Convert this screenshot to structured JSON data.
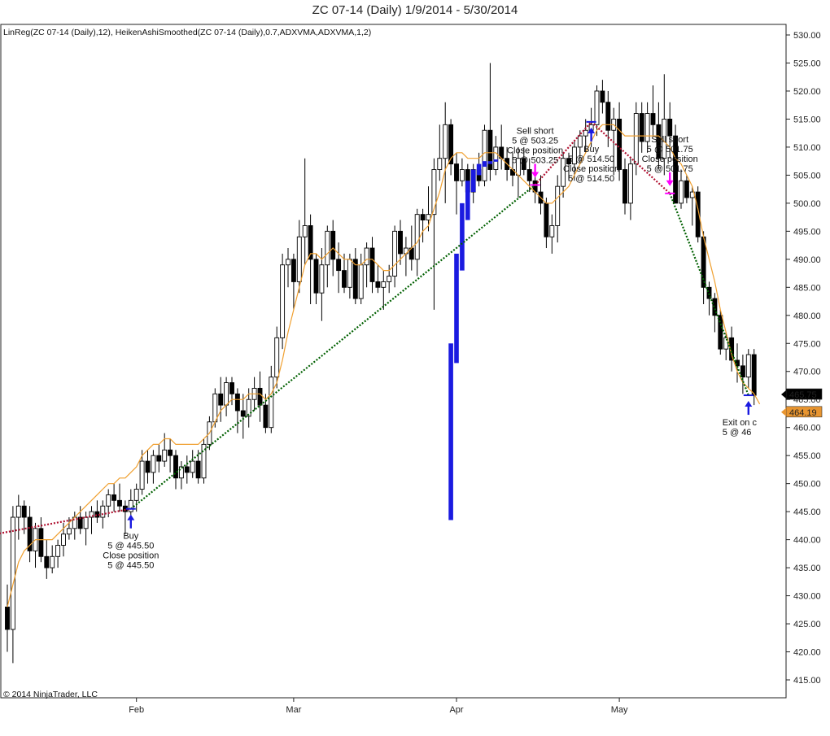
{
  "chart_data": {
    "type": "candlestick",
    "title": "ZC 07-14 (Daily)  1/9/2014 - 5/30/2014",
    "indicator_label": "LinReg(ZC 07-14 (Daily),12), HeikenAshiSmoothed(ZC 07-14 (Daily),0.7,ADXVMA,ADXVMA,1,2)",
    "copyright": "© 2014 NinjaTrader, LLC",
    "ylim": [
      411,
      532
    ],
    "y_ticks": [
      "530.00",
      "525.00",
      "520.00",
      "515.00",
      "510.00",
      "505.00",
      "500.00",
      "495.00",
      "490.00",
      "485.00",
      "480.00",
      "475.00",
      "470.00",
      "465.00",
      "460.00",
      "455.00",
      "450.00",
      "445.00",
      "440.00",
      "435.00",
      "430.00",
      "425.00",
      "420.00",
      "415.00"
    ],
    "x_ticks": [
      {
        "label": "Feb",
        "bar": 23
      },
      {
        "label": "Mar",
        "bar": 51
      },
      {
        "label": "Apr",
        "bar": 80
      },
      {
        "label": "May",
        "bar": 109
      }
    ],
    "bars": [
      {
        "o": 428,
        "h": 432,
        "l": 420,
        "c": 424
      },
      {
        "o": 424,
        "h": 446,
        "l": 418,
        "c": 444
      },
      {
        "o": 444,
        "h": 448,
        "l": 440,
        "c": 446
      },
      {
        "o": 446,
        "h": 447,
        "l": 441,
        "c": 444
      },
      {
        "o": 444,
        "h": 446,
        "l": 436,
        "c": 438
      },
      {
        "o": 438,
        "h": 443,
        "l": 435,
        "c": 442
      },
      {
        "o": 442,
        "h": 444,
        "l": 436,
        "c": 437
      },
      {
        "o": 437,
        "h": 440,
        "l": 433,
        "c": 435
      },
      {
        "o": 435,
        "h": 439,
        "l": 434,
        "c": 437
      },
      {
        "o": 437,
        "h": 440,
        "l": 435,
        "c": 439
      },
      {
        "o": 439,
        "h": 443,
        "l": 437,
        "c": 441
      },
      {
        "o": 441,
        "h": 444,
        "l": 440,
        "c": 442
      },
      {
        "o": 442,
        "h": 445,
        "l": 440,
        "c": 444
      },
      {
        "o": 444,
        "h": 446,
        "l": 441,
        "c": 442
      },
      {
        "o": 442,
        "h": 445,
        "l": 439,
        "c": 444
      },
      {
        "o": 444,
        "h": 446,
        "l": 441,
        "c": 445
      },
      {
        "o": 445,
        "h": 447,
        "l": 443,
        "c": 444
      },
      {
        "o": 444,
        "h": 447,
        "l": 442,
        "c": 446
      },
      {
        "o": 446,
        "h": 449,
        "l": 444,
        "c": 448
      },
      {
        "o": 448,
        "h": 450,
        "l": 445,
        "c": 447
      },
      {
        "o": 447,
        "h": 450,
        "l": 445,
        "c": 446
      },
      {
        "o": 446,
        "h": 447,
        "l": 441,
        "c": 445
      },
      {
        "o": 445,
        "h": 449,
        "l": 444,
        "c": 447
      },
      {
        "o": 447,
        "h": 450,
        "l": 445,
        "c": 449
      },
      {
        "o": 449,
        "h": 456,
        "l": 448,
        "c": 454
      },
      {
        "o": 454,
        "h": 456,
        "l": 450,
        "c": 452
      },
      {
        "o": 452,
        "h": 456,
        "l": 450,
        "c": 455
      },
      {
        "o": 455,
        "h": 457,
        "l": 452,
        "c": 454
      },
      {
        "o": 454,
        "h": 459,
        "l": 453,
        "c": 456
      },
      {
        "o": 456,
        "h": 458,
        "l": 452,
        "c": 455
      },
      {
        "o": 455,
        "h": 456,
        "l": 449,
        "c": 451
      },
      {
        "o": 451,
        "h": 454,
        "l": 449,
        "c": 453
      },
      {
        "o": 453,
        "h": 455,
        "l": 450,
        "c": 452
      },
      {
        "o": 452,
        "h": 456,
        "l": 451,
        "c": 454
      },
      {
        "o": 454,
        "h": 456,
        "l": 450,
        "c": 451
      },
      {
        "o": 451,
        "h": 458,
        "l": 450,
        "c": 457
      },
      {
        "o": 457,
        "h": 462,
        "l": 456,
        "c": 461
      },
      {
        "o": 461,
        "h": 467,
        "l": 460,
        "c": 466
      },
      {
        "o": 466,
        "h": 469,
        "l": 461,
        "c": 464
      },
      {
        "o": 464,
        "h": 469,
        "l": 462,
        "c": 468
      },
      {
        "o": 468,
        "h": 469,
        "l": 464,
        "c": 466
      },
      {
        "o": 466,
        "h": 467,
        "l": 459,
        "c": 463
      },
      {
        "o": 463,
        "h": 466,
        "l": 458,
        "c": 462
      },
      {
        "o": 462,
        "h": 467,
        "l": 460,
        "c": 465
      },
      {
        "o": 465,
        "h": 469,
        "l": 463,
        "c": 467
      },
      {
        "o": 467,
        "h": 470,
        "l": 461,
        "c": 464
      },
      {
        "o": 464,
        "h": 466,
        "l": 459,
        "c": 460
      },
      {
        "o": 460,
        "h": 471,
        "l": 459,
        "c": 469
      },
      {
        "o": 469,
        "h": 478,
        "l": 467,
        "c": 476
      },
      {
        "o": 476,
        "h": 491,
        "l": 474,
        "c": 489
      },
      {
        "o": 489,
        "h": 492,
        "l": 485,
        "c": 490
      },
      {
        "o": 490,
        "h": 491,
        "l": 481,
        "c": 486
      },
      {
        "o": 486,
        "h": 497,
        "l": 484,
        "c": 494
      },
      {
        "o": 494,
        "h": 508,
        "l": 489,
        "c": 496
      },
      {
        "o": 496,
        "h": 498,
        "l": 482,
        "c": 490
      },
      {
        "o": 490,
        "h": 491,
        "l": 482,
        "c": 484
      },
      {
        "o": 484,
        "h": 492,
        "l": 479,
        "c": 489
      },
      {
        "o": 489,
        "h": 496,
        "l": 485,
        "c": 495
      },
      {
        "o": 495,
        "h": 497,
        "l": 487,
        "c": 490
      },
      {
        "o": 490,
        "h": 493,
        "l": 484,
        "c": 488
      },
      {
        "o": 488,
        "h": 491,
        "l": 484,
        "c": 485
      },
      {
        "o": 485,
        "h": 491,
        "l": 483,
        "c": 490
      },
      {
        "o": 490,
        "h": 492,
        "l": 482,
        "c": 483
      },
      {
        "o": 483,
        "h": 491,
        "l": 482,
        "c": 489
      },
      {
        "o": 489,
        "h": 493,
        "l": 485,
        "c": 492
      },
      {
        "o": 492,
        "h": 494,
        "l": 484,
        "c": 486
      },
      {
        "o": 486,
        "h": 489,
        "l": 484,
        "c": 485
      },
      {
        "o": 485,
        "h": 488,
        "l": 481,
        "c": 486
      },
      {
        "o": 486,
        "h": 489,
        "l": 484,
        "c": 487
      },
      {
        "o": 487,
        "h": 496,
        "l": 485,
        "c": 495
      },
      {
        "o": 495,
        "h": 497,
        "l": 489,
        "c": 491
      },
      {
        "o": 491,
        "h": 494,
        "l": 487,
        "c": 492
      },
      {
        "o": 492,
        "h": 496,
        "l": 488,
        "c": 490
      },
      {
        "o": 490,
        "h": 499,
        "l": 487,
        "c": 498
      },
      {
        "o": 498,
        "h": 499,
        "l": 493,
        "c": 497
      },
      {
        "o": 497,
        "h": 503,
        "l": 495,
        "c": 498
      },
      {
        "o": 498,
        "h": 508,
        "l": 481,
        "c": 506
      },
      {
        "o": 506,
        "h": 514,
        "l": 504,
        "c": 508
      },
      {
        "o": 508,
        "h": 518,
        "l": 500,
        "c": 514
      },
      {
        "o": 514,
        "h": 515,
        "l": 505,
        "c": 507
      },
      {
        "o": 507,
        "h": 509,
        "l": 498,
        "c": 504
      },
      {
        "o": 504,
        "h": 508,
        "l": 503,
        "c": 506
      },
      {
        "o": 506,
        "h": 507,
        "l": 500,
        "c": 502
      },
      {
        "o": 502,
        "h": 507,
        "l": 500,
        "c": 506
      },
      {
        "o": 506,
        "h": 509,
        "l": 503,
        "c": 504
      },
      {
        "o": 504,
        "h": 514,
        "l": 503,
        "c": 513
      },
      {
        "o": 513,
        "h": 525,
        "l": 504,
        "c": 506
      },
      {
        "o": 506,
        "h": 512,
        "l": 505,
        "c": 510
      },
      {
        "o": 510,
        "h": 514,
        "l": 506,
        "c": 508
      },
      {
        "o": 508,
        "h": 510,
        "l": 504,
        "c": 506
      },
      {
        "o": 506,
        "h": 509,
        "l": 503,
        "c": 505
      },
      {
        "o": 505,
        "h": 510,
        "l": 501,
        "c": 508
      },
      {
        "o": 508,
        "h": 510,
        "l": 505,
        "c": 506
      },
      {
        "o": 506,
        "h": 508,
        "l": 502,
        "c": 504
      },
      {
        "o": 504,
        "h": 507,
        "l": 500,
        "c": 502
      },
      {
        "o": 502,
        "h": 505,
        "l": 498,
        "c": 500
      },
      {
        "o": 500,
        "h": 501,
        "l": 492,
        "c": 494
      },
      {
        "o": 494,
        "h": 498,
        "l": 491,
        "c": 496
      },
      {
        "o": 496,
        "h": 505,
        "l": 493,
        "c": 503
      },
      {
        "o": 503,
        "h": 509,
        "l": 501,
        "c": 508
      },
      {
        "o": 508,
        "h": 509,
        "l": 504,
        "c": 507
      },
      {
        "o": 507,
        "h": 511,
        "l": 504,
        "c": 510
      },
      {
        "o": 510,
        "h": 513,
        "l": 507,
        "c": 512
      },
      {
        "o": 512,
        "h": 515,
        "l": 509,
        "c": 513
      },
      {
        "o": 513,
        "h": 517,
        "l": 510,
        "c": 514
      },
      {
        "o": 514,
        "h": 521,
        "l": 512,
        "c": 520
      },
      {
        "o": 520,
        "h": 522,
        "l": 516,
        "c": 518
      },
      {
        "o": 518,
        "h": 520,
        "l": 510,
        "c": 513
      },
      {
        "o": 513,
        "h": 517,
        "l": 505,
        "c": 515
      },
      {
        "o": 515,
        "h": 518,
        "l": 504,
        "c": 506
      },
      {
        "o": 506,
        "h": 508,
        "l": 498,
        "c": 500
      },
      {
        "o": 500,
        "h": 508,
        "l": 497,
        "c": 507
      },
      {
        "o": 507,
        "h": 518,
        "l": 505,
        "c": 516
      },
      {
        "o": 516,
        "h": 518,
        "l": 509,
        "c": 511
      },
      {
        "o": 511,
        "h": 518,
        "l": 509,
        "c": 516
      },
      {
        "o": 516,
        "h": 521,
        "l": 512,
        "c": 514
      },
      {
        "o": 514,
        "h": 518,
        "l": 506,
        "c": 508
      },
      {
        "o": 508,
        "h": 523,
        "l": 505,
        "c": 515
      },
      {
        "o": 515,
        "h": 518,
        "l": 508,
        "c": 512
      },
      {
        "o": 512,
        "h": 514,
        "l": 500,
        "c": 500
      },
      {
        "o": 500,
        "h": 506,
        "l": 499,
        "c": 504
      },
      {
        "o": 504,
        "h": 505,
        "l": 500,
        "c": 501
      },
      {
        "o": 501,
        "h": 503,
        "l": 496,
        "c": 502
      },
      {
        "o": 502,
        "h": 503,
        "l": 493,
        "c": 494
      },
      {
        "o": 494,
        "h": 495,
        "l": 482,
        "c": 485
      },
      {
        "o": 485,
        "h": 486,
        "l": 480,
        "c": 483
      },
      {
        "o": 483,
        "h": 484,
        "l": 477,
        "c": 480
      },
      {
        "o": 480,
        "h": 481,
        "l": 473,
        "c": 474
      },
      {
        "o": 474,
        "h": 477,
        "l": 472,
        "c": 476
      },
      {
        "o": 476,
        "h": 478,
        "l": 470,
        "c": 472
      },
      {
        "o": 472,
        "h": 475,
        "l": 468,
        "c": 471
      },
      {
        "o": 471,
        "h": 473,
        "l": 466,
        "c": 469
      },
      {
        "o": 469,
        "h": 474,
        "l": 467,
        "c": 473
      },
      {
        "o": 473,
        "h": 474,
        "l": 464,
        "c": 465.75
      }
    ],
    "linreg": [
      428,
      432,
      436,
      438,
      439,
      440,
      440,
      440,
      440,
      441,
      442,
      443,
      444,
      445,
      446,
      447,
      448,
      449,
      450,
      450,
      451,
      451,
      452,
      453,
      455,
      456,
      457,
      457,
      458,
      458,
      457,
      457,
      457,
      457,
      457,
      458,
      459,
      461,
      463,
      464,
      465,
      465,
      465,
      466,
      466,
      466,
      465,
      466,
      468,
      472,
      477,
      481,
      485,
      489,
      491,
      491,
      490,
      491,
      492,
      491,
      490,
      490,
      489,
      489,
      490,
      490,
      489,
      488,
      488,
      489,
      490,
      491,
      492,
      493,
      495,
      496,
      499,
      502,
      506,
      508,
      509,
      509,
      508,
      508,
      508,
      509,
      509,
      509,
      508,
      507,
      506,
      505,
      504,
      503,
      502,
      501,
      500,
      500,
      501,
      502,
      503,
      505,
      507,
      509,
      511,
      513,
      514,
      514,
      514,
      513,
      512,
      512,
      512,
      512,
      512,
      512,
      512,
      511,
      510,
      508,
      507,
      505,
      503,
      499,
      494,
      490,
      486,
      481,
      477,
      473,
      470,
      468,
      467,
      466,
      464.19
    ],
    "ha_blocks": [
      {
        "bar": 79,
        "top": 475,
        "bottom": 443.5
      },
      {
        "bar": 80,
        "top": 491,
        "bottom": 471.5
      },
      {
        "bar": 81,
        "top": 500,
        "bottom": 488
      },
      {
        "bar": 82,
        "top": 504,
        "bottom": 497
      },
      {
        "bar": 83,
        "top": 506,
        "bottom": 502
      },
      {
        "bar": 84,
        "top": 507,
        "bottom": 505
      },
      {
        "bar": 85,
        "top": 507.5,
        "bottom": 506.5
      },
      {
        "bar": 86,
        "top": 507.5,
        "bottom": 507
      },
      {
        "bar": 87,
        "top": 507.8,
        "bottom": 507.4
      }
    ],
    "trade_lines": [
      {
        "from_bar": -2,
        "from": 441,
        "to_bar": 22,
        "to": 445.5,
        "color": "#b01030"
      },
      {
        "from_bar": 22,
        "from": 445.5,
        "to_bar": 94,
        "to": 503.25,
        "color": "#006000"
      },
      {
        "from_bar": 94,
        "from": 503.25,
        "to_bar": 104,
        "to": 514.5,
        "color": "#b01030"
      },
      {
        "from_bar": 104,
        "from": 514.5,
        "to_bar": 118,
        "to": 501.75,
        "color": "#b01030"
      },
      {
        "from_bar": 118,
        "from": 501.75,
        "to_bar": 132,
        "to": 465.75,
        "color": "#006000"
      }
    ],
    "price_tags": [
      {
        "value": 465.75,
        "label": "465.75",
        "bg": "#000000",
        "fg": "#ffffff"
      },
      {
        "value": 464.19,
        "label": "464.19",
        "bg": "#e89530",
        "fg": "#000000"
      }
    ],
    "annotations": [
      {
        "id": "buy-feb",
        "type": "buy",
        "bar": 22,
        "price": 445.5,
        "lines": [
          "Buy",
          "5 @ 445.50",
          "Close position",
          "5 @ 445.50"
        ]
      },
      {
        "id": "sell-apr",
        "type": "sell",
        "bar": 94,
        "price": 503.25,
        "lines": [
          "Sell short",
          "5 @ 503.25",
          "Close position",
          "5 @ 503.25"
        ]
      },
      {
        "id": "buy-may",
        "type": "buy",
        "bar": 104,
        "price": 514.5,
        "lines": [
          "Buy",
          "5 @ 514.50",
          "Close position",
          "5 @ 514.50"
        ]
      },
      {
        "id": "sell-may",
        "type": "sell",
        "bar": 118,
        "price": 501.75,
        "lines": [
          "Sell short",
          "5 @ 501.75",
          "Close position",
          "5 @ 501.75"
        ]
      },
      {
        "id": "exit-may",
        "type": "exit",
        "bar": 132,
        "price": 465.75,
        "lines": [
          "Exit on c",
          "5 @ 46"
        ]
      }
    ]
  }
}
